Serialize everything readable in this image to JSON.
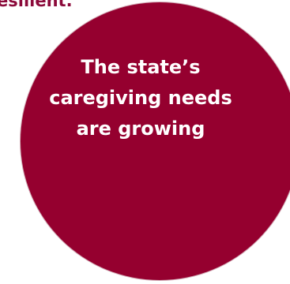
{
  "heading": {
    "fragment": "esilient."
  },
  "circle": {
    "text": "The state’s caregiving needs are growing",
    "fill_color": "#95002f",
    "text_color": "#ffffff"
  },
  "colors": {
    "heading": "#8b0a3a",
    "background": "#ffffff"
  }
}
